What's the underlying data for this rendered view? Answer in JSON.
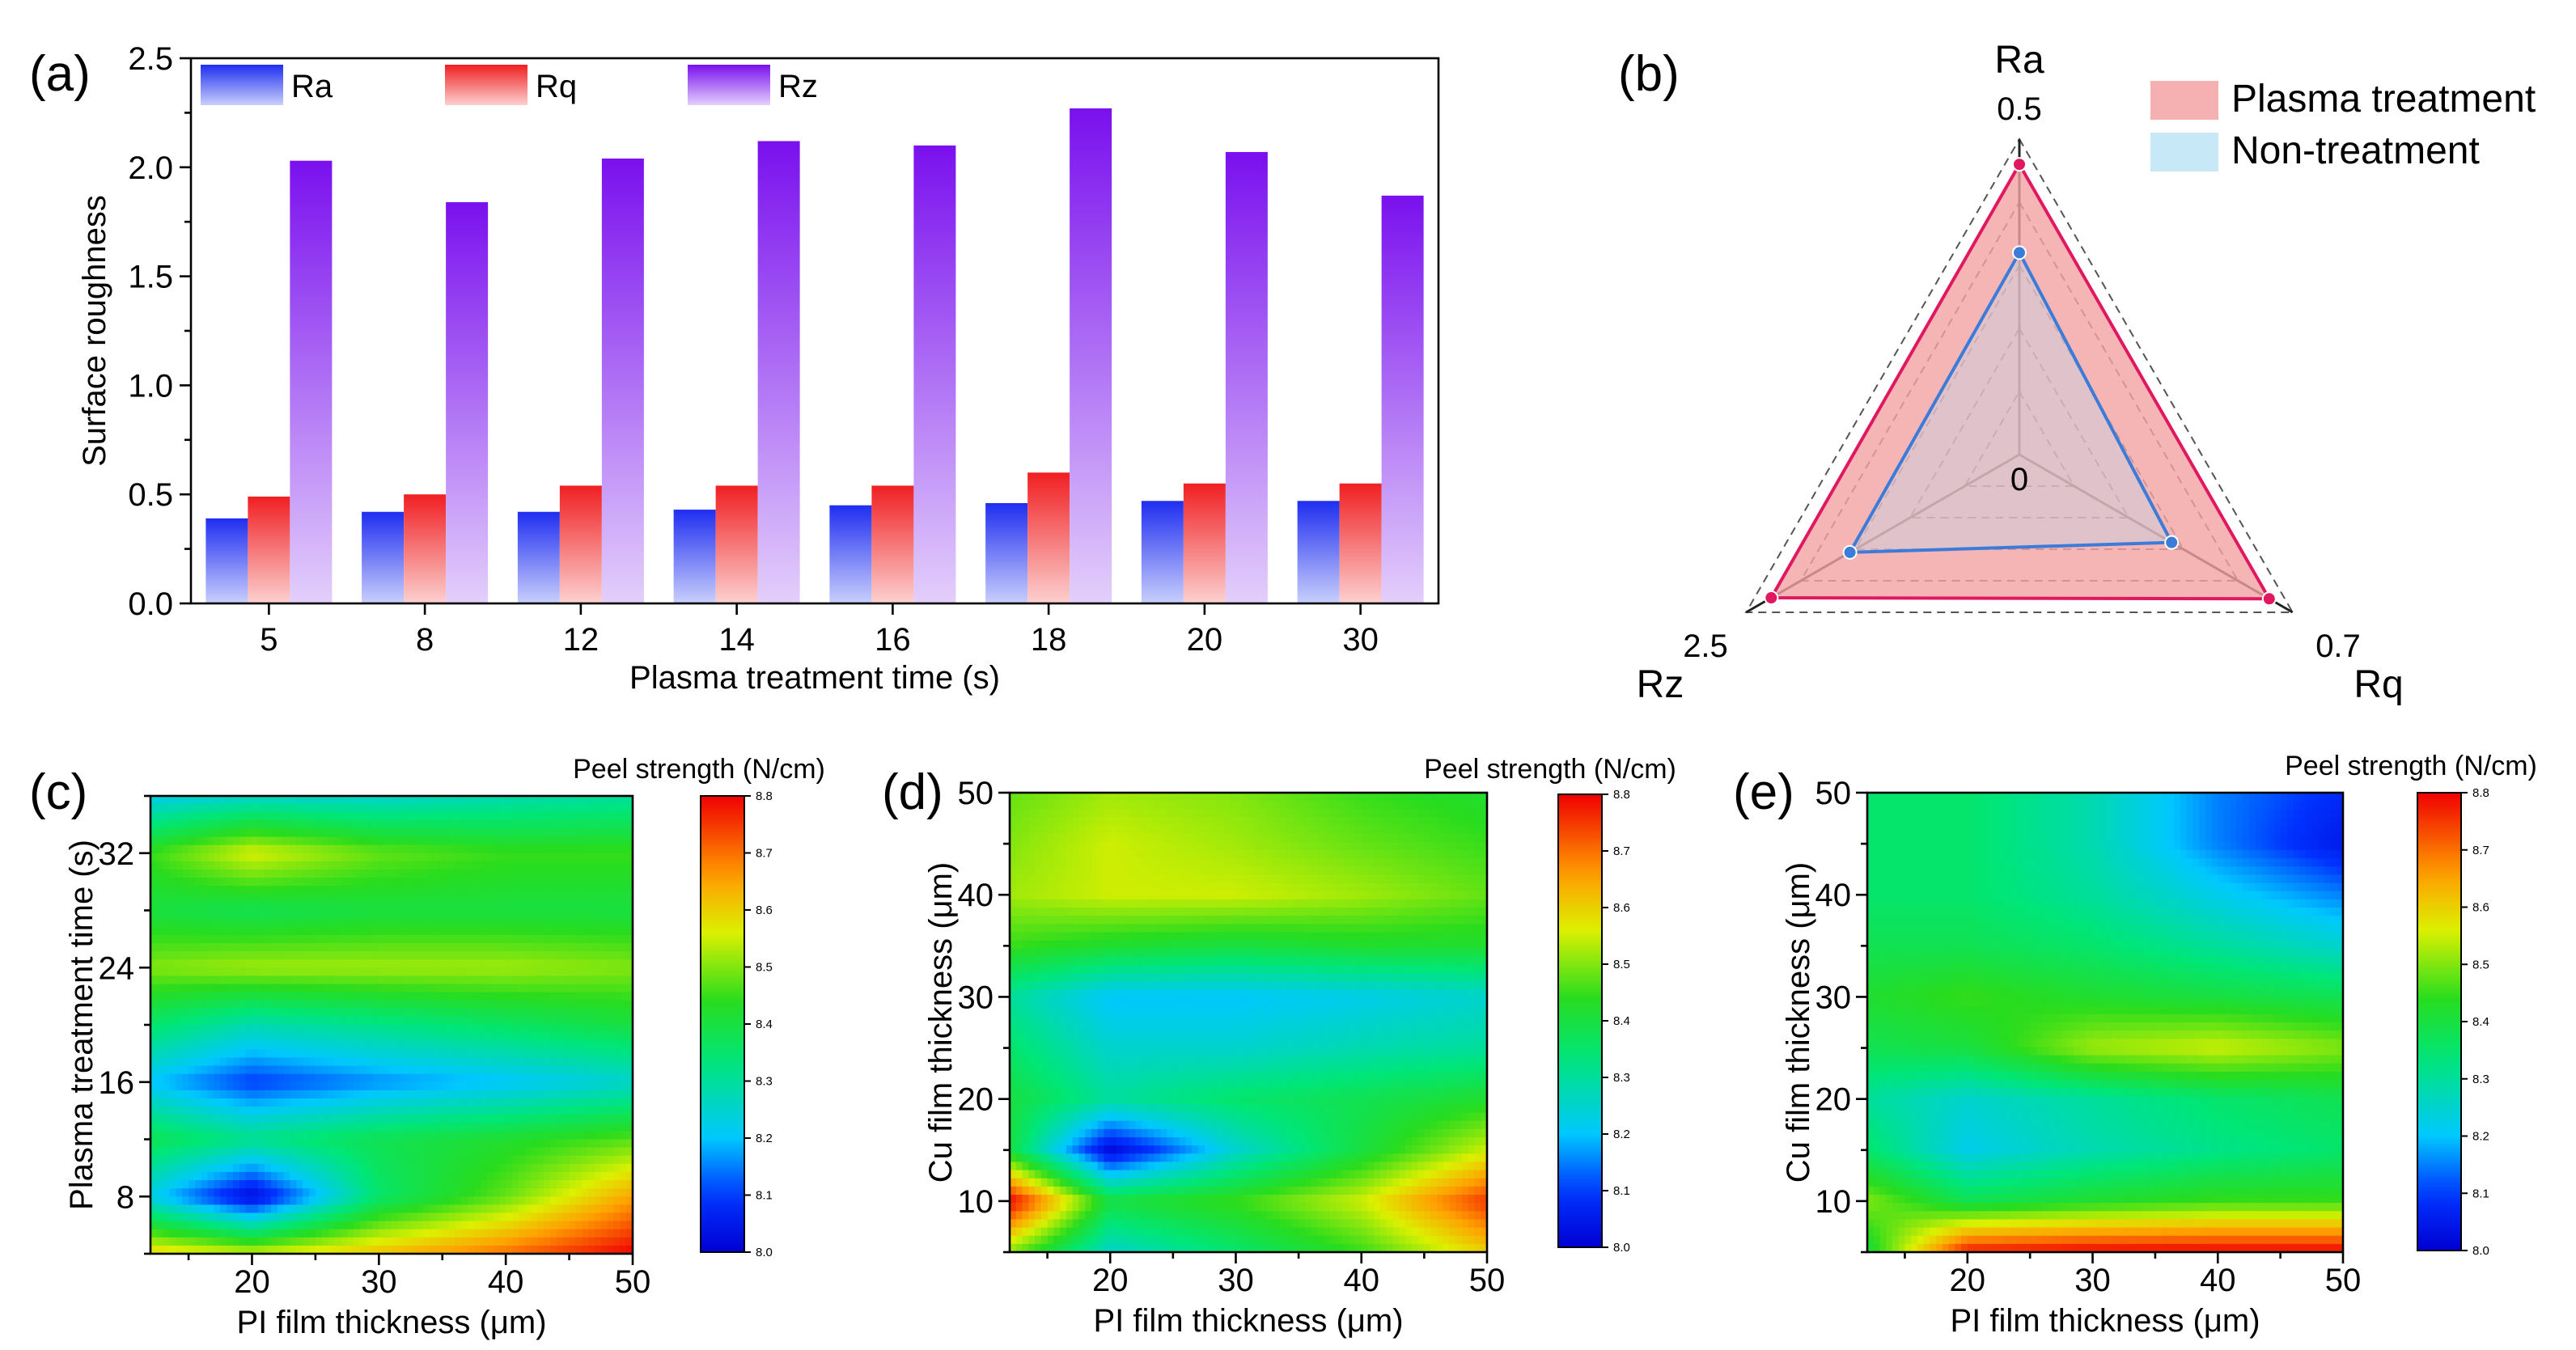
{
  "colors": {
    "ra_top": "#1f2ef0",
    "ra_bottom": "#c9cffc",
    "rq_top": "#f01f22",
    "rq_bottom": "#fcd0cf",
    "rz_top": "#7a10ee",
    "rz_bottom": "#e3cffb",
    "plasma_line": "#e0185f",
    "plasma_fill": "#f3a3a3",
    "non_line": "#3d7bd9",
    "non_fill": "#b9dcf1",
    "non_legend_fill": "#c7e9f7"
  },
  "chart_data": [
    {
      "type": "bar",
      "panel_label": "(a)",
      "title": "",
      "xlabel": "Plasma treatment time (s)",
      "ylabel": "Surface roughness",
      "ylim": [
        0,
        2.5
      ],
      "yticks": [
        "0.0",
        "0.5",
        "1.0",
        "1.5",
        "2.0",
        "2.5"
      ],
      "categories": [
        "5",
        "8",
        "12",
        "14",
        "16",
        "18",
        "20",
        "30"
      ],
      "series": [
        {
          "name": "Ra",
          "values": [
            0.39,
            0.42,
            0.42,
            0.43,
            0.45,
            0.46,
            0.47,
            0.47
          ]
        },
        {
          "name": "Rq",
          "values": [
            0.49,
            0.5,
            0.54,
            0.54,
            0.54,
            0.6,
            0.55,
            0.55
          ]
        },
        {
          "name": "Rz",
          "values": [
            2.03,
            1.84,
            2.04,
            2.12,
            2.1,
            2.27,
            2.07,
            1.87
          ]
        }
      ],
      "legend_position": "top"
    },
    {
      "type": "radar",
      "panel_label": "(b)",
      "axes": [
        {
          "name": "Ra",
          "max": 0.5,
          "max_label": "0.5"
        },
        {
          "name": "Rq",
          "max": 0.7,
          "max_label": "0.7"
        },
        {
          "name": "Rz",
          "max": 2.5,
          "max_label": "2.5"
        }
      ],
      "center_label": "0",
      "series": [
        {
          "name": "Plasma treatment",
          "values": [
            0.46,
            0.64,
            2.27
          ]
        },
        {
          "name": "Non-treatment",
          "values": [
            0.32,
            0.39,
            1.55
          ]
        }
      ],
      "legend_position": "top-right"
    },
    {
      "type": "heatmap",
      "panel_label": "(c)",
      "xlabel": "PI film thickness (μm)",
      "ylabel": "Plasma treatment time (s)",
      "xlim": [
        12,
        50
      ],
      "ylim": [
        4,
        36
      ],
      "xticks": [
        "20",
        "30",
        "40",
        "50"
      ],
      "yticks": [
        "8",
        "16",
        "24",
        "32"
      ],
      "colorbar_title": "Peel strength (N/cm)",
      "colorbar_range": [
        8.0,
        8.8
      ],
      "colorbar_ticks": [
        "8.0",
        "8.1",
        "8.2",
        "8.3",
        "8.4",
        "8.5",
        "8.6",
        "8.7",
        "8.8"
      ],
      "x": [
        12,
        20,
        30,
        40,
        50
      ],
      "y": [
        4,
        8,
        12,
        16,
        20,
        24,
        28,
        32,
        36
      ],
      "z": [
        [
          8.6,
          8.55,
          8.62,
          8.7,
          8.8
        ],
        [
          8.22,
          8.02,
          8.35,
          8.48,
          8.65
        ],
        [
          8.38,
          8.32,
          8.38,
          8.42,
          8.47
        ],
        [
          8.2,
          8.1,
          8.16,
          8.2,
          8.25
        ],
        [
          8.35,
          8.28,
          8.32,
          8.36,
          8.4
        ],
        [
          8.5,
          8.52,
          8.52,
          8.52,
          8.5
        ],
        [
          8.4,
          8.38,
          8.4,
          8.4,
          8.4
        ],
        [
          8.45,
          8.56,
          8.48,
          8.45,
          8.45
        ],
        [
          8.22,
          8.25,
          8.25,
          8.28,
          8.3
        ]
      ]
    },
    {
      "type": "heatmap",
      "panel_label": "(d)",
      "xlabel": "PI film thickness (μm)",
      "ylabel": "Cu film thickness (μm)",
      "xlim": [
        12,
        50
      ],
      "ylim": [
        5,
        50
      ],
      "xticks": [
        "20",
        "30",
        "40",
        "50"
      ],
      "yticks": [
        "10",
        "20",
        "30",
        "40",
        "50"
      ],
      "colorbar_title": "Peel strength (N/cm)",
      "colorbar_range": [
        8.0,
        8.8
      ],
      "colorbar_ticks": [
        "8.0",
        "8.1",
        "8.2",
        "8.3",
        "8.4",
        "8.5",
        "8.6",
        "8.7",
        "8.8"
      ],
      "x": [
        12,
        20,
        30,
        40,
        50
      ],
      "y": [
        5,
        10,
        15,
        20,
        25,
        30,
        35,
        40,
        45,
        50
      ],
      "z": [
        [
          8.5,
          8.25,
          8.35,
          8.45,
          8.6
        ],
        [
          8.8,
          8.4,
          8.45,
          8.55,
          8.75
        ],
        [
          8.4,
          8.02,
          8.25,
          8.4,
          8.55
        ],
        [
          8.4,
          8.3,
          8.35,
          8.38,
          8.42
        ],
        [
          8.35,
          8.25,
          8.25,
          8.28,
          8.3
        ],
        [
          8.3,
          8.2,
          8.2,
          8.22,
          8.25
        ],
        [
          8.45,
          8.42,
          8.4,
          8.42,
          8.42
        ],
        [
          8.52,
          8.55,
          8.55,
          8.52,
          8.48
        ],
        [
          8.5,
          8.55,
          8.52,
          8.48,
          8.45
        ],
        [
          8.48,
          8.52,
          8.5,
          8.45,
          8.42
        ]
      ]
    },
    {
      "type": "heatmap",
      "panel_label": "(e)",
      "xlabel": "PI film thickness (μm)",
      "ylabel": "Cu film thickness (μm)",
      "xlim": [
        12,
        50
      ],
      "ylim": [
        5,
        50
      ],
      "xticks": [
        "20",
        "30",
        "40",
        "50"
      ],
      "yticks": [
        "10",
        "20",
        "30",
        "40",
        "50"
      ],
      "colorbar_title": "Peel strength (N/cm)",
      "colorbar_range": [
        8.0,
        8.8
      ],
      "colorbar_ticks": [
        "8.0",
        "8.1",
        "8.2",
        "8.3",
        "8.4",
        "8.5",
        "8.6",
        "8.7",
        "8.8"
      ],
      "x": [
        12,
        20,
        30,
        40,
        50
      ],
      "y": [
        5,
        10,
        15,
        20,
        25,
        30,
        35,
        40,
        45,
        50
      ],
      "z": [
        [
          8.4,
          8.78,
          8.8,
          8.8,
          8.8
        ],
        [
          8.5,
          8.38,
          8.42,
          8.45,
          8.45
        ],
        [
          8.35,
          8.22,
          8.28,
          8.32,
          8.35
        ],
        [
          8.3,
          8.25,
          8.3,
          8.35,
          8.38
        ],
        [
          8.38,
          8.4,
          8.52,
          8.55,
          8.5
        ],
        [
          8.42,
          8.45,
          8.42,
          8.4,
          8.38
        ],
        [
          8.38,
          8.38,
          8.35,
          8.3,
          8.25
        ],
        [
          8.35,
          8.35,
          8.3,
          8.22,
          8.15
        ],
        [
          8.35,
          8.35,
          8.28,
          8.15,
          8.05
        ],
        [
          8.35,
          8.35,
          8.28,
          8.15,
          8.08
        ]
      ]
    }
  ]
}
